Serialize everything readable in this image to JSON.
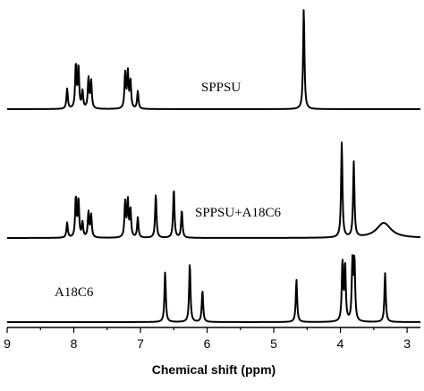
{
  "chart_data": {
    "type": "line",
    "xlabel": "Chemical shift (ppm)",
    "ylabel": "",
    "xlim": [
      9,
      2.8
    ],
    "x_reversed": true,
    "xticks": [
      9,
      8,
      7,
      6,
      5,
      4,
      3
    ],
    "grid": false,
    "legend": "none",
    "series": [
      {
        "name": "SPPSU",
        "color": "#000000",
        "peaks": [
          {
            "ppm": 8.1,
            "height": 0.16
          },
          {
            "ppm": 7.97,
            "height": 0.35
          },
          {
            "ppm": 7.93,
            "height": 0.33
          },
          {
            "ppm": 7.87,
            "height": 0.14
          },
          {
            "ppm": 7.78,
            "height": 0.24
          },
          {
            "ppm": 7.74,
            "height": 0.22
          },
          {
            "ppm": 7.23,
            "height": 0.28
          },
          {
            "ppm": 7.19,
            "height": 0.29
          },
          {
            "ppm": 7.15,
            "height": 0.22
          },
          {
            "ppm": 7.04,
            "height": 0.14
          },
          {
            "ppm": 4.55,
            "height": 0.8
          }
        ]
      },
      {
        "name": "SPPSU+A18C6",
        "color": "#000000",
        "peaks": [
          {
            "ppm": 8.1,
            "height": 0.12
          },
          {
            "ppm": 7.97,
            "height": 0.32
          },
          {
            "ppm": 7.93,
            "height": 0.3
          },
          {
            "ppm": 7.87,
            "height": 0.12
          },
          {
            "ppm": 7.78,
            "height": 0.2
          },
          {
            "ppm": 7.74,
            "height": 0.18
          },
          {
            "ppm": 7.23,
            "height": 0.28
          },
          {
            "ppm": 7.19,
            "height": 0.29
          },
          {
            "ppm": 7.15,
            "height": 0.22
          },
          {
            "ppm": 7.04,
            "height": 0.16
          },
          {
            "ppm": 6.77,
            "height": 0.35
          },
          {
            "ppm": 6.5,
            "height": 0.39
          },
          {
            "ppm": 6.38,
            "height": 0.22
          },
          {
            "ppm": 3.98,
            "height": 0.76
          },
          {
            "ppm": 3.8,
            "height": 0.6
          },
          {
            "ppm": 3.35,
            "height": 0.12,
            "broad": true
          }
        ]
      },
      {
        "name": "A18C6",
        "color": "#000000",
        "peaks": [
          {
            "ppm": 6.63,
            "height": 0.4
          },
          {
            "ppm": 6.26,
            "height": 0.47
          },
          {
            "ppm": 6.07,
            "height": 0.25
          },
          {
            "ppm": 4.66,
            "height": 0.34
          },
          {
            "ppm": 3.97,
            "height": 0.47
          },
          {
            "ppm": 3.93,
            "height": 0.45
          },
          {
            "ppm": 3.82,
            "height": 0.46
          },
          {
            "ppm": 3.79,
            "height": 0.48
          },
          {
            "ppm": 3.33,
            "height": 0.39
          }
        ]
      }
    ]
  }
}
